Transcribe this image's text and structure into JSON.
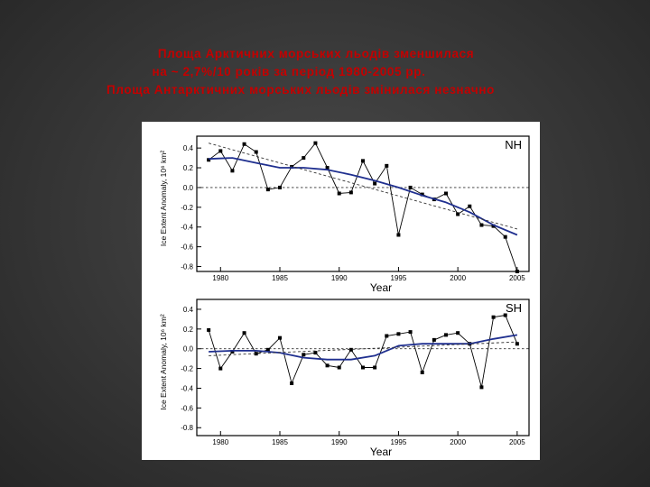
{
  "slide": {
    "title_line1": "Площа Арктичних морських льодів зменшилася",
    "title_line2": "на ~ 2,7%/10 років за період 1980-2005 рр.",
    "title_line3": "Площа Антарктичних морських льодів змінилася незначно"
  },
  "colors": {
    "background": "#3a3a3a",
    "title_text": "#c40000",
    "smooth_line": "#1f2f8f",
    "data_line": "#000000"
  },
  "chart_data": [
    {
      "type": "line",
      "panel_label": "NH",
      "xlabel": "Year",
      "ylabel": "Ice Extent Anomaly, 10⁶ km²",
      "x_ticks": [
        1980,
        1985,
        1990,
        1995,
        2000,
        2005
      ],
      "y_ticks": [
        0.4,
        0.2,
        0.0,
        -0.2,
        -0.4,
        -0.6,
        -0.8
      ],
      "y_tick_labels": [
        "0.4",
        "0.2",
        "0.0",
        "-0.2",
        "-0.4",
        "-0.6",
        "-0.8"
      ],
      "xlim": [
        1978,
        2006
      ],
      "ylim": [
        -0.85,
        0.52
      ],
      "grid": false,
      "zero_line": true,
      "series": [
        {
          "style": "markers-solid",
          "x": [
            1979,
            1980,
            1981,
            1982,
            1983,
            1984,
            1985,
            1986,
            1987,
            1988,
            1989,
            1990,
            1991,
            1992,
            1993,
            1994,
            1995,
            1996,
            1997,
            1998,
            1999,
            2000,
            2001,
            2002,
            2003,
            2004,
            2005
          ],
          "values": [
            0.28,
            0.37,
            0.17,
            0.44,
            0.36,
            -0.02,
            0.0,
            0.21,
            0.3,
            0.45,
            0.2,
            -0.06,
            -0.05,
            0.27,
            0.04,
            0.22,
            -0.48,
            0.0,
            -0.07,
            -0.12,
            -0.06,
            -0.27,
            -0.19,
            -0.38,
            -0.39,
            -0.5,
            -0.85
          ]
        },
        {
          "style": "smooth-blue",
          "x": [
            1979,
            1981,
            1983,
            1985,
            1987,
            1989,
            1991,
            1993,
            1995,
            1997,
            1999,
            2001,
            2003,
            2005
          ],
          "values": [
            0.29,
            0.3,
            0.25,
            0.2,
            0.2,
            0.18,
            0.13,
            0.07,
            0.0,
            -0.08,
            -0.15,
            -0.25,
            -0.38,
            -0.48
          ]
        },
        {
          "style": "trend-dashed",
          "x": [
            1979,
            2005
          ],
          "values": [
            0.45,
            -0.42
          ]
        }
      ]
    },
    {
      "type": "line",
      "panel_label": "SH",
      "xlabel": "Year",
      "ylabel": "Ice Extent Anomaly, 10⁶ km²",
      "x_ticks": [
        1980,
        1985,
        1990,
        1995,
        2000,
        2005
      ],
      "y_ticks": [
        0.4,
        0.2,
        0.0,
        -0.2,
        -0.4,
        -0.6,
        -0.8
      ],
      "y_tick_labels": [
        "0.4",
        "0.2",
        "0.0",
        "-0.2",
        "-0.4",
        "-0.6",
        "-0.8"
      ],
      "xlim": [
        1978,
        2006
      ],
      "ylim": [
        -0.88,
        0.5
      ],
      "grid": false,
      "zero_line": true,
      "series": [
        {
          "style": "markers-solid",
          "x": [
            1979,
            1980,
            1981,
            1982,
            1983,
            1984,
            1985,
            1986,
            1987,
            1988,
            1989,
            1990,
            1991,
            1992,
            1993,
            1994,
            1995,
            1996,
            1997,
            1998,
            1999,
            2000,
            2001,
            2002,
            2003,
            2004,
            2005
          ],
          "values": [
            0.19,
            -0.2,
            -0.03,
            0.16,
            -0.05,
            -0.01,
            0.11,
            -0.35,
            -0.06,
            -0.04,
            -0.17,
            -0.19,
            -0.01,
            -0.19,
            -0.19,
            0.13,
            0.15,
            0.17,
            -0.24,
            0.09,
            0.14,
            0.16,
            0.05,
            -0.39,
            0.32,
            0.34,
            0.05
          ]
        },
        {
          "style": "smooth-blue",
          "x": [
            1979,
            1981,
            1983,
            1985,
            1987,
            1989,
            1991,
            1993,
            1995,
            1997,
            1999,
            2001,
            2003,
            2005
          ],
          "values": [
            -0.03,
            -0.02,
            -0.02,
            -0.04,
            -0.09,
            -0.11,
            -0.11,
            -0.07,
            0.03,
            0.05,
            0.05,
            0.05,
            0.1,
            0.14
          ]
        },
        {
          "style": "trend-dashed",
          "x": [
            1979,
            2005
          ],
          "values": [
            -0.07,
            0.07
          ]
        }
      ]
    }
  ]
}
